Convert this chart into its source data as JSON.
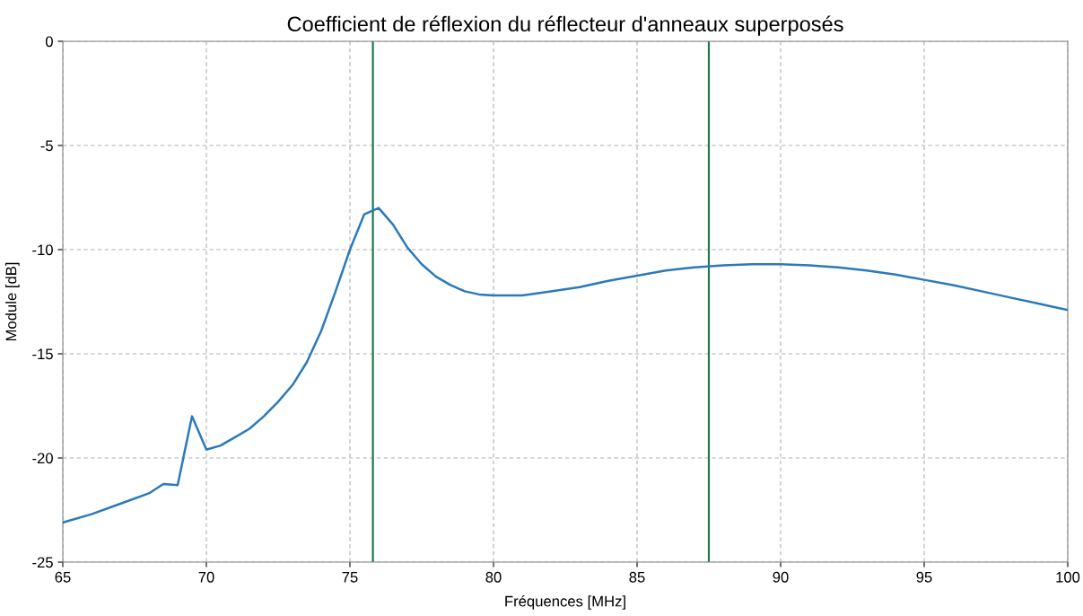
{
  "chart_data": {
    "type": "line",
    "title": "Coefficient de réflexion du réflecteur d'anneaux superposés",
    "xlabel": "Fréquences [MHz]",
    "ylabel": "Module [dB]",
    "x": [
      65,
      66,
      67,
      68,
      68.5,
      69,
      69.5,
      70,
      70.5,
      71,
      71.5,
      72,
      72.5,
      73,
      73.5,
      74,
      74.5,
      75,
      75.5,
      76,
      76.5,
      77,
      77.5,
      78,
      78.5,
      79,
      79.5,
      80,
      81,
      82,
      83,
      84,
      85,
      86,
      87,
      88,
      89,
      90,
      91,
      92,
      93,
      94,
      95,
      96,
      97,
      98,
      99,
      100
    ],
    "series": [
      {
        "color": "#2a7ab9",
        "values": [
          -23.1,
          -22.7,
          -22.2,
          -21.7,
          -21.25,
          -21.3,
          -18.0,
          -19.6,
          -19.4,
          -19.0,
          -18.6,
          -18.0,
          -17.3,
          -16.5,
          -15.4,
          -13.9,
          -12.0,
          -10.0,
          -8.3,
          -8.0,
          -8.8,
          -9.9,
          -10.7,
          -11.3,
          -11.7,
          -12.0,
          -12.15,
          -12.2,
          -12.2,
          -12.0,
          -11.8,
          -11.5,
          -11.25,
          -11.0,
          -10.85,
          -10.75,
          -10.7,
          -10.7,
          -10.75,
          -10.85,
          -11.0,
          -11.2,
          -11.45,
          -11.7,
          -12.0,
          -12.3,
          -12.6,
          -12.9
        ]
      }
    ],
    "ref_lines": [
      {
        "axis": "x",
        "value": 75.8,
        "color": "#1f7a4d"
      },
      {
        "axis": "x",
        "value": 87.5,
        "color": "#1f7a4d"
      }
    ],
    "xlim": [
      65,
      100
    ],
    "xticks": [
      65,
      70,
      75,
      80,
      85,
      90,
      95,
      100
    ],
    "ylim": [
      -25,
      0
    ],
    "yticks": [
      -25,
      -20,
      -15,
      -10,
      -5,
      0
    ],
    "grid": true,
    "marker": "none",
    "line_style": "solid"
  }
}
